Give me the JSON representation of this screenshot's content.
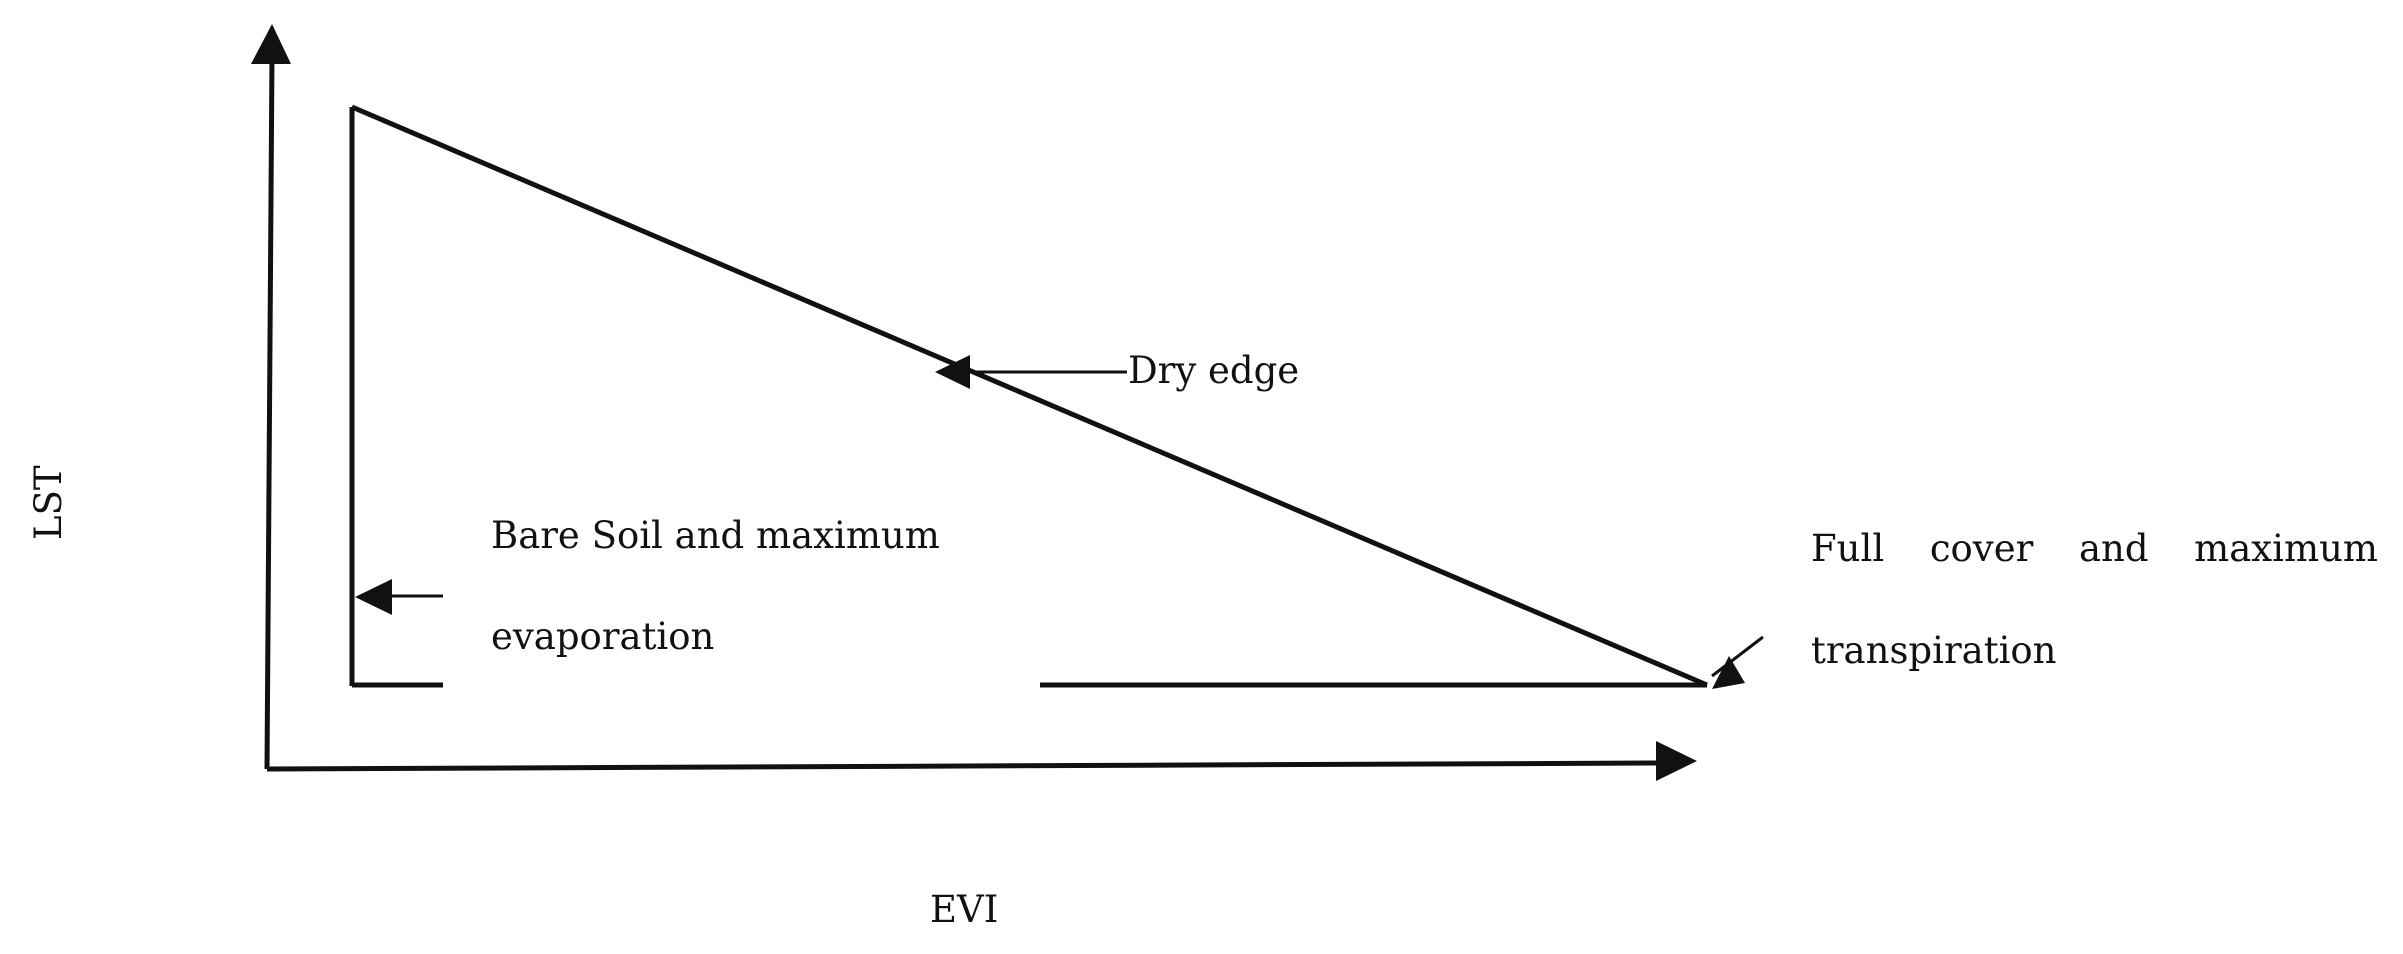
{
  "diagram": {
    "x_axis_label": "EVI",
    "y_axis_label": "LST",
    "dry_edge_label": "Dry edge",
    "bare_soil_label": {
      "line1": "Bare Soil and maximum",
      "line2": "evaporation"
    },
    "full_cover_label": {
      "line1_words": [
        "Full",
        "cover",
        "and",
        "maximum"
      ],
      "line2": "transpiration"
    },
    "colors": {
      "stroke": "#111111",
      "background": "#ffffff"
    }
  }
}
